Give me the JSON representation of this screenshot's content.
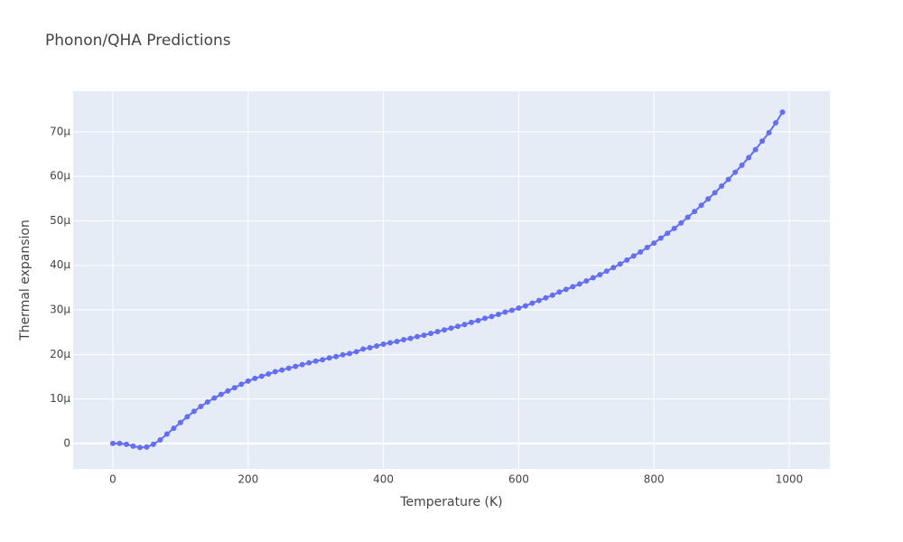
{
  "chart_data": {
    "type": "line",
    "title": "Phonon/QHA Predictions",
    "x_label": "Temperature (K)",
    "y_label": "Thermal expansion",
    "x": [
      0,
      10,
      20,
      30,
      40,
      50,
      60,
      70,
      80,
      90,
      100,
      110,
      120,
      130,
      140,
      150,
      160,
      170,
      180,
      190,
      200,
      210,
      220,
      230,
      240,
      250,
      260,
      270,
      280,
      290,
      300,
      310,
      320,
      330,
      340,
      350,
      360,
      370,
      380,
      390,
      400,
      410,
      420,
      430,
      440,
      450,
      460,
      470,
      480,
      490,
      500,
      510,
      520,
      530,
      540,
      550,
      560,
      570,
      580,
      590,
      600,
      610,
      620,
      630,
      640,
      650,
      660,
      670,
      680,
      690,
      700,
      710,
      720,
      730,
      740,
      750,
      760,
      770,
      780,
      790,
      800,
      810,
      820,
      830,
      840,
      850,
      860,
      870,
      880,
      890,
      900,
      910,
      920,
      930,
      940,
      950,
      960,
      970,
      980,
      990
    ],
    "series": [
      {
        "name": "Thermal expansion",
        "color": "#636efa",
        "values": [
          0,
          0,
          -2e-07,
          -6e-07,
          -9e-07,
          -8e-07,
          -2e-07,
          8e-07,
          2.1e-06,
          3.4e-06,
          4.7e-06,
          6e-06,
          7.2e-06,
          8.3e-06,
          9.3e-06,
          1.02e-05,
          1.1e-05,
          1.18e-05,
          1.25e-05,
          1.33e-05,
          1.4e-05,
          1.46e-05,
          1.51e-05,
          1.56e-05,
          1.61e-05,
          1.65e-05,
          1.69e-05,
          1.73e-05,
          1.77e-05,
          1.81e-05,
          1.85e-05,
          1.88e-05,
          1.92e-05,
          1.95e-05,
          1.99e-05,
          2.02e-05,
          2.06e-05,
          2.12e-05,
          2.15e-05,
          2.19e-05,
          2.23e-05,
          2.26e-05,
          2.29e-05,
          2.33e-05,
          2.36e-05,
          2.4e-05,
          2.43e-05,
          2.47e-05,
          2.51e-05,
          2.55e-05,
          2.59e-05,
          2.63e-05,
          2.67e-05,
          2.72e-05,
          2.76e-05,
          2.81e-05,
          2.85e-05,
          2.9e-05,
          2.95e-05,
          2.99e-05,
          3.04e-05,
          3.09e-05,
          3.15e-05,
          3.21e-05,
          3.27e-05,
          3.33e-05,
          3.4e-05,
          3.46e-05,
          3.52e-05,
          3.58e-05,
          3.65e-05,
          3.72e-05,
          3.79e-05,
          3.87e-05,
          3.95e-05,
          4.03e-05,
          4.12e-05,
          4.21e-05,
          4.3e-05,
          4.4e-05,
          4.5e-05,
          4.61e-05,
          4.72e-05,
          4.83e-05,
          4.95e-05,
          5.08e-05,
          5.21e-05,
          5.35e-05,
          5.49e-05,
          5.63e-05,
          5.78e-05,
          5.93e-05,
          6.09e-05,
          6.25e-05,
          6.42e-05,
          6.6e-05,
          6.79e-05,
          6.98e-05,
          7.2e-05,
          7.44e-05
        ]
      }
    ],
    "xlim": [
      -58.7,
      1060
    ],
    "xticks": [
      0,
      200,
      400,
      600,
      800,
      1000
    ],
    "ylim": [
      -5.7e-06,
      7.91e-05
    ],
    "yticks": [
      0,
      {
        "value": 1e-05,
        "label": "10μ"
      },
      {
        "value": 2e-05,
        "label": "20μ"
      },
      {
        "value": 3e-05,
        "label": "30μ"
      },
      {
        "value": 4e-05,
        "label": "40μ"
      },
      {
        "value": 5e-05,
        "label": "50μ"
      },
      {
        "value": 6e-05,
        "label": "60μ"
      },
      {
        "value": 7e-05,
        "label": "70μ"
      }
    ],
    "grid": true,
    "plot_background": "#e5ecf6"
  }
}
